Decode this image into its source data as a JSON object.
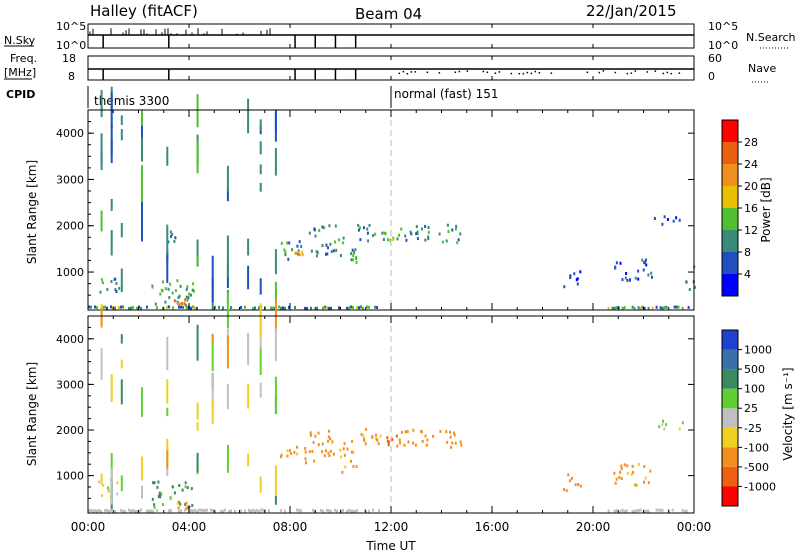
{
  "header": {
    "station": "Halley (fitACF)",
    "beam": "Beam 04",
    "date": "22/Jan/2015"
  },
  "summary": {
    "nsky_label": "N.Sky",
    "nsky_ticks": [
      "10^5",
      "10^0"
    ],
    "nsearch_label": "N.Search",
    "freq_label_top": "Freq.",
    "freq_label_unit": "[MHz]",
    "freq_ticks": [
      "18",
      "8"
    ],
    "nave_label": "Nave",
    "nave_ticks": [
      "60",
      "0"
    ],
    "cpid_label": "CPID",
    "cpid_segments": [
      {
        "label": "themis 3300",
        "start_hour": 0
      },
      {
        "label": "normal (fast) 151",
        "start_hour": 12
      }
    ]
  },
  "x_axis": {
    "title": "Time UT",
    "ticks": [
      "00:00",
      "04:00",
      "08:00",
      "12:00",
      "16:00",
      "20:00",
      "00:00"
    ],
    "range_hours": [
      0,
      24
    ]
  },
  "panels": [
    {
      "id": "power",
      "ylabel": "Slant Range [km]",
      "yticks": [
        "1000",
        "2000",
        "3000",
        "4000"
      ],
      "colorbar": {
        "title": "Power [dB]",
        "labels": [
          "4",
          "8",
          "12",
          "16",
          "20",
          "24",
          "28"
        ],
        "colors": [
          "#0000ff",
          "#2050c0",
          "#3a8a78",
          "#50c030",
          "#e8c000",
          "#f09020",
          "#e86010",
          "#ff0000"
        ]
      }
    },
    {
      "id": "velocity",
      "ylabel": "Slant Range [km]",
      "yticks": [
        "1000",
        "2000",
        "3000",
        "4000"
      ],
      "colorbar": {
        "title": "Velocity [m s⁻¹]",
        "labels": [
          "1000",
          "500",
          "100",
          "25",
          "-25",
          "-100",
          "-500",
          "-1000"
        ],
        "colors": [
          "#2040d0",
          "#3a6fa8",
          "#3a8a60",
          "#60d030",
          "#c0c0c0",
          "#f0d020",
          "#f09020",
          "#f06010",
          "#ff0000"
        ]
      }
    }
  ],
  "chart_data": {
    "type": "heatmap",
    "x_unit": "hours UT",
    "y_unit": "km",
    "xlim": [
      0,
      24
    ],
    "ylim": [
      180,
      4500
    ],
    "power_regions": [
      {
        "x": [
          0.3,
          1.2
        ],
        "y": [
          550,
          950
        ],
        "value": 10
      },
      {
        "x": [
          2.5,
          4.2
        ],
        "y": [
          300,
          900
        ],
        "value": 12
      },
      {
        "x": [
          3.4,
          4.0
        ],
        "y": [
          300,
          450
        ],
        "value": 24
      },
      {
        "x": [
          3.1,
          3.5
        ],
        "y": [
          1500,
          1900
        ],
        "value": 8
      },
      {
        "x": [
          7.5,
          8.6
        ],
        "y": [
          1300,
          1700
        ],
        "value": 10
      },
      {
        "x": [
          8.0,
          8.5
        ],
        "y": [
          1350,
          1500
        ],
        "value": 20
      },
      {
        "x": [
          8.7,
          9.8
        ],
        "y": [
          1350,
          2050
        ],
        "value": 9
      },
      {
        "x": [
          9.9,
          10.6
        ],
        "y": [
          1100,
          1800
        ],
        "value": 11
      },
      {
        "x": [
          10.6,
          11.7
        ],
        "y": [
          1650,
          2050
        ],
        "value": 9
      },
      {
        "x": [
          11.7,
          12.2
        ],
        "y": [
          1700,
          1900
        ],
        "value": 16
      },
      {
        "x": [
          12.2,
          14.8
        ],
        "y": [
          1650,
          2050
        ],
        "value": 10
      },
      {
        "x": [
          18.8,
          19.5
        ],
        "y": [
          700,
          1100
        ],
        "value": 6
      },
      {
        "x": [
          20.8,
          22.3
        ],
        "y": [
          800,
          1300
        ],
        "value": 6
      },
      {
        "x": [
          22.4,
          23.6
        ],
        "y": [
          2050,
          2250
        ],
        "value": 5
      },
      {
        "x": [
          23.6,
          24.0
        ],
        "y": [
          650,
          1150
        ],
        "value": 6
      }
    ],
    "velocity_regions": [
      {
        "x": [
          0.3,
          1.2
        ],
        "y": [
          550,
          950
        ],
        "value": 10
      },
      {
        "x": [
          2.5,
          4.2
        ],
        "y": [
          300,
          900
        ],
        "value": 150
      },
      {
        "x": [
          3.4,
          4.0
        ],
        "y": [
          300,
          450
        ],
        "value": -150
      },
      {
        "x": [
          7.5,
          8.6
        ],
        "y": [
          1300,
          1700
        ],
        "value": -150
      },
      {
        "x": [
          8.7,
          9.8
        ],
        "y": [
          1350,
          2050
        ],
        "value": -200
      },
      {
        "x": [
          9.9,
          10.6
        ],
        "y": [
          1100,
          1800
        ],
        "value": -150
      },
      {
        "x": [
          10.6,
          11.7
        ],
        "y": [
          1650,
          2050
        ],
        "value": -150
      },
      {
        "x": [
          11.7,
          12.2
        ],
        "y": [
          1700,
          1900
        ],
        "value": -700
      },
      {
        "x": [
          12.2,
          14.8
        ],
        "y": [
          1650,
          2050
        ],
        "value": -400
      },
      {
        "x": [
          18.8,
          19.5
        ],
        "y": [
          700,
          1100
        ],
        "value": -200
      },
      {
        "x": [
          20.8,
          22.3
        ],
        "y": [
          800,
          1300
        ],
        "value": -150
      },
      {
        "x": [
          22.4,
          23.6
        ],
        "y": [
          2050,
          2250
        ],
        "value": 0
      }
    ],
    "vertical_streaks": [
      0.5,
      0.9,
      1.3,
      2.1,
      3.1,
      4.3,
      4.9,
      5.5,
      6.3,
      6.8,
      7.4
    ],
    "ground_scatter_band": {
      "y": [
        180,
        280
      ],
      "x_ranges": [
        [
          0,
          11.5
        ],
        [
          20.5,
          24
        ]
      ]
    },
    "nsky_gap_hours": [
      0.6,
      3.2,
      8.2,
      9.0,
      9.8,
      10.6
    ]
  }
}
